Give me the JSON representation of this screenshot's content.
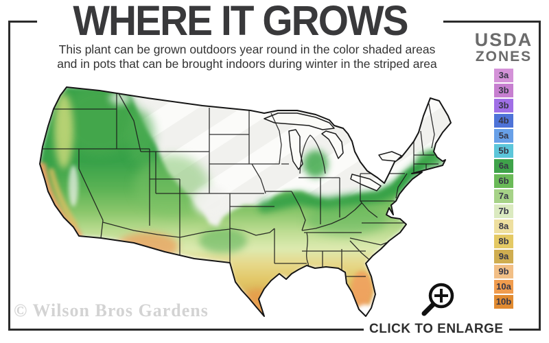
{
  "title": "WHERE IT GROWS",
  "subtitle_line1": "This plant can be grown outdoors year round in the color shaded areas",
  "subtitle_line2": "and in pots that can be brought indoors during winter in the striped area",
  "legend": {
    "heading_line1": "USDA",
    "heading_line2": "ZONES",
    "zones": [
      {
        "label": "3a",
        "color": "#d492d8"
      },
      {
        "label": "3b",
        "color": "#c77fd0"
      },
      {
        "label": "3b",
        "color": "#a06fe6"
      },
      {
        "label": "4b",
        "color": "#4e73d8"
      },
      {
        "label": "5a",
        "color": "#68a0e8"
      },
      {
        "label": "5b",
        "color": "#5cc6da"
      },
      {
        "label": "6a",
        "color": "#3fa34a"
      },
      {
        "label": "6b",
        "color": "#6bba58"
      },
      {
        "label": "7a",
        "color": "#a6d287"
      },
      {
        "label": "7b",
        "color": "#dbeac0"
      },
      {
        "label": "8a",
        "color": "#eedf9f"
      },
      {
        "label": "8b",
        "color": "#e4c964"
      },
      {
        "label": "9a",
        "color": "#cfad50"
      },
      {
        "label": "9b",
        "color": "#f2bf86"
      },
      {
        "label": "10a",
        "color": "#f09c4e"
      },
      {
        "label": "10b",
        "color": "#e18b31"
      }
    ]
  },
  "map": {
    "alt": "Map of the contiguous United States shaded by USDA hardiness zone; color shaded areas show where the plant grows outdoors, white diagonally striped areas show where it must winter indoors",
    "no_grow_base_color": "#f1f1ee",
    "stripe_color": "#fbfbf9",
    "border_color": "#1b1b1b"
  },
  "watermark": "© Wilson Bros Gardens",
  "enlarge": {
    "label": "CLICK TO ENLARGE"
  }
}
